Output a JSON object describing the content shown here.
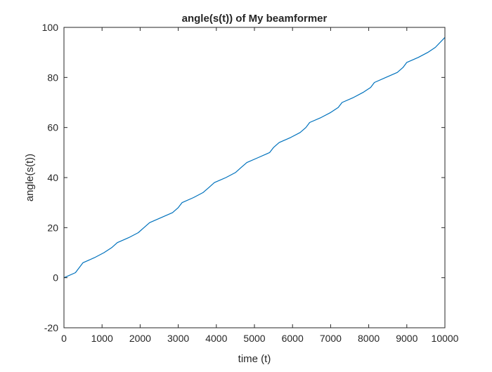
{
  "chart_data": {
    "type": "line",
    "title": "angle(s(t)) of My beamformer",
    "xlabel": "time (t)",
    "ylabel": "angle(s(t))",
    "xlim": [
      0,
      10000
    ],
    "ylim": [
      -20,
      100
    ],
    "xticks": [
      0,
      1000,
      2000,
      3000,
      4000,
      5000,
      6000,
      7000,
      8000,
      9000,
      10000
    ],
    "yticks": [
      -20,
      0,
      20,
      40,
      60,
      80,
      100
    ],
    "grid": false,
    "series": [
      {
        "color": "#0072bd",
        "x": [
          0,
          300,
          500,
          800,
          1050,
          1250,
          1400,
          1700,
          1950,
          2100,
          2250,
          2550,
          2850,
          3000,
          3100,
          3400,
          3650,
          3800,
          3950,
          4250,
          4500,
          4650,
          4800,
          5100,
          5400,
          5500,
          5650,
          5950,
          6200,
          6350,
          6450,
          6750,
          7000,
          7200,
          7300,
          7600,
          7850,
          8050,
          8150,
          8450,
          8750,
          8900,
          9000,
          9300,
          9550,
          9750,
          10000
        ],
        "y": [
          0,
          2,
          6,
          8,
          10,
          12,
          14,
          16,
          18,
          20,
          22,
          24,
          26,
          28,
          30,
          32,
          34,
          36,
          38,
          40,
          42,
          44,
          46,
          48,
          50,
          52,
          54,
          56,
          58,
          60,
          62,
          64,
          66,
          68,
          70,
          72,
          74,
          76,
          78,
          80,
          82,
          84,
          86,
          88,
          90,
          92,
          96
        ]
      }
    ]
  }
}
